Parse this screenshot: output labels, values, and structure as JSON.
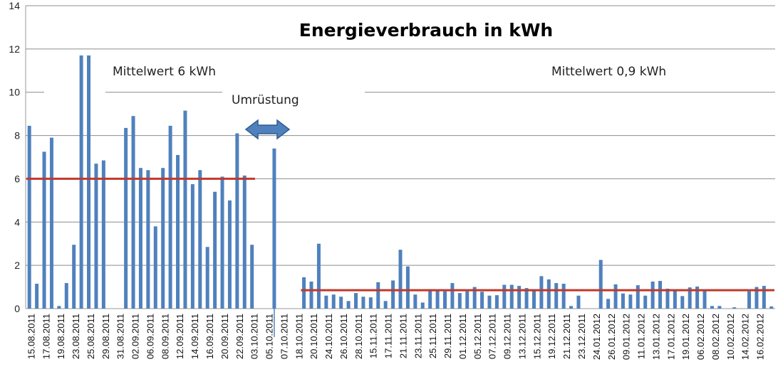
{
  "chart_data": {
    "type": "bar",
    "title": "Energieverbrauch in kWh",
    "xlabel": "",
    "ylabel": "",
    "ylim": [
      0,
      14
    ],
    "yticks": [
      0,
      2,
      4,
      6,
      8,
      10,
      12,
      14
    ],
    "grid": true,
    "bar_color": "#4f81bd",
    "mean_line_color": "#c0392b",
    "tick_labels": [
      "15.08.2011",
      "17.08.2011",
      "19.08.2011",
      "23.08.2011",
      "25.08.2011",
      "29.08.2011",
      "31.08.2011",
      "02.09.2011",
      "06.09.2011",
      "08.09.2011",
      "12.09.2011",
      "14.09.2011",
      "16.09.2011",
      "20.09.2011",
      "22.09.2011",
      "03.10.2011",
      "05.10.2011",
      "07.10.2011",
      "18.10.2011",
      "20.10.2011",
      "24.10.2011",
      "26.10.2011",
      "28.10.2011",
      "15.11.2011",
      "17.11.2011",
      "21.11.2011",
      "23.11.2011",
      "25.11.2011",
      "29.11.2011",
      "01.12.2011",
      "05.12.2011",
      "07.12.2011",
      "09.12.2011",
      "13.12.2011",
      "15.12.2011",
      "19.12.2011",
      "21.12.2011",
      "23.12.2011",
      "24.01.2012",
      "26.01.2012",
      "09.01.2012",
      "11.01.2012",
      "13.01.2012",
      "17.01.2012",
      "19.01.2012",
      "06.02.2012",
      "08.02.2012",
      "10.02.2012",
      "14.02.2012",
      "16.02.2012"
    ],
    "values": [
      8.45,
      1.15,
      7.25,
      7.9,
      0.12,
      1.18,
      2.95,
      11.7,
      11.7,
      6.7,
      6.85,
      0,
      0,
      8.35,
      8.9,
      6.5,
      6.4,
      3.8,
      6.5,
      8.45,
      7.1,
      9.15,
      5.75,
      6.4,
      2.85,
      5.4,
      6.1,
      5.0,
      8.1,
      6.15,
      2.95,
      0,
      0,
      7.4,
      0,
      0,
      0,
      1.45,
      1.25,
      3.0,
      0.6,
      0.65,
      0.55,
      0.35,
      0.72,
      0.55,
      0.52,
      1.22,
      0.35,
      1.3,
      2.72,
      1.95,
      0.65,
      0.28,
      0.9,
      0.85,
      0.8,
      1.18,
      0.72,
      0.8,
      1.0,
      0.78,
      0.6,
      0.62,
      1.1,
      1.1,
      1.05,
      0.95,
      0.9,
      1.5,
      1.35,
      1.18,
      1.15,
      0.12,
      0.6,
      0,
      0,
      2.25,
      0.45,
      1.12,
      0.7,
      0.65,
      1.08,
      0.6,
      1.25,
      1.28,
      0.92,
      0.88,
      0.58,
      0.98,
      1.02,
      0.85,
      0.12,
      0.12,
      0,
      0.06,
      0,
      0.8,
      1.0,
      1.05,
      0.1
    ],
    "mean_lines": [
      {
        "label": "Mittelwert 6 kWh",
        "value": 6.0,
        "from_index": 0,
        "to_index": 30
      },
      {
        "label": "Mittelwert 0,9 kWh",
        "value": 0.85,
        "from_index": 37,
        "to_index": 100
      }
    ],
    "annotation": {
      "label": "Umrüstung",
      "arrow": "double-headed"
    }
  }
}
